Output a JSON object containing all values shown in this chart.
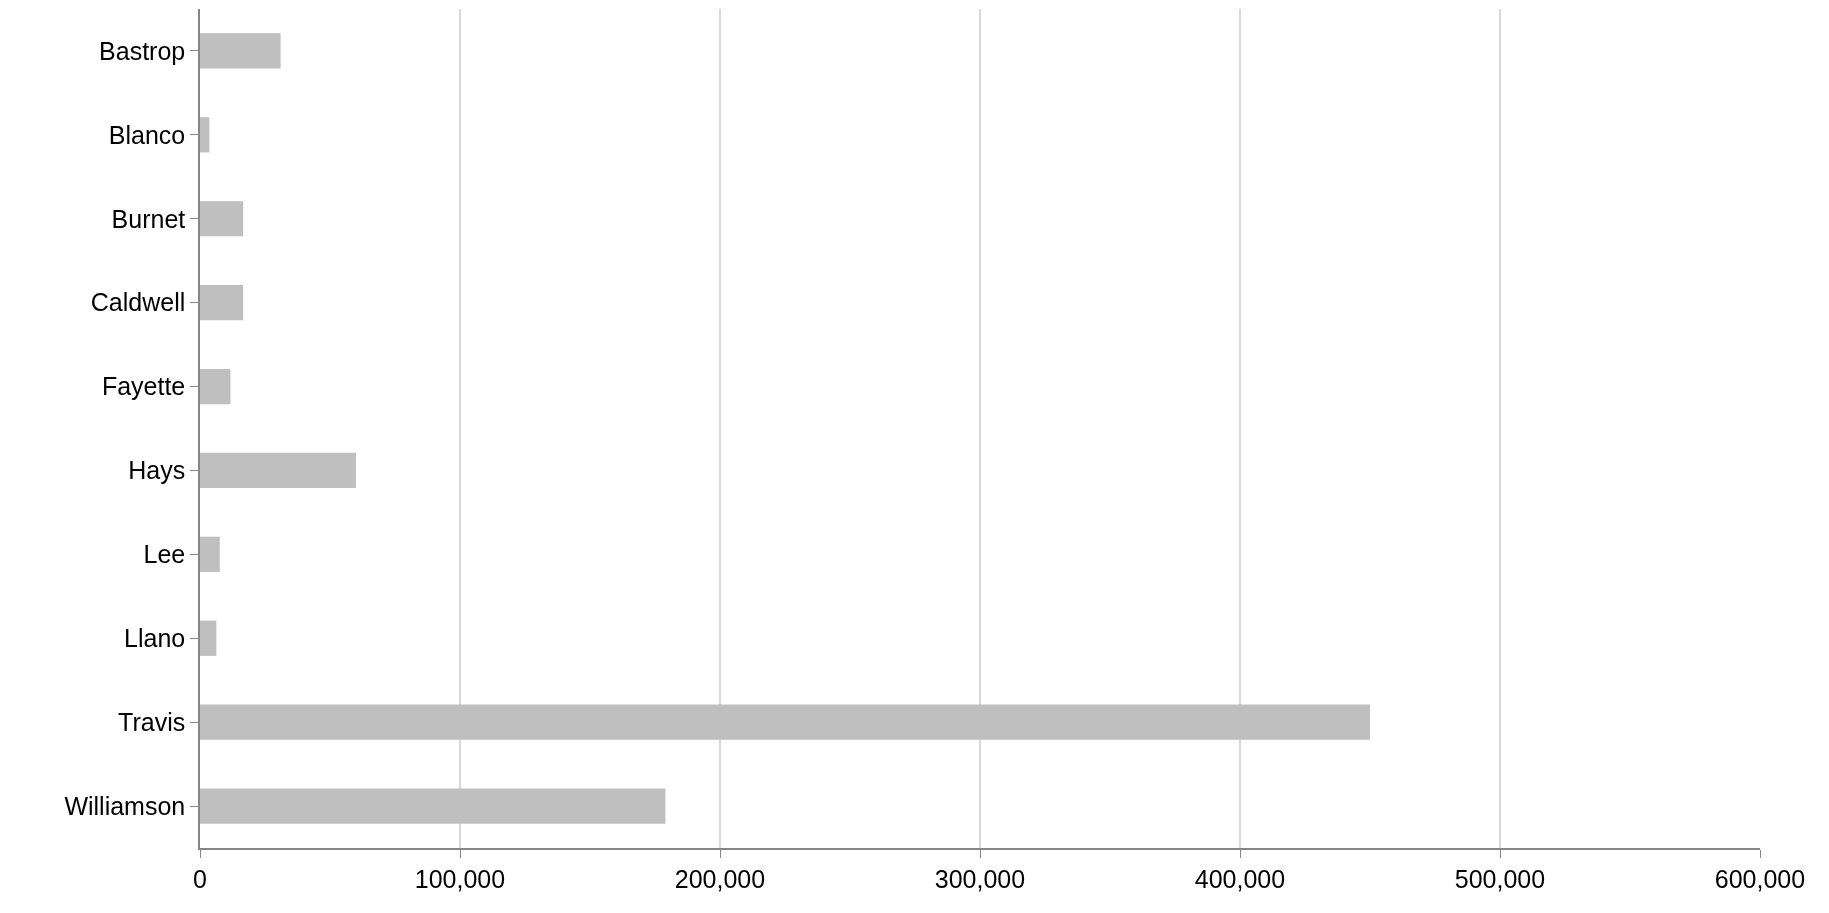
{
  "chart_data": {
    "type": "bar",
    "orientation": "horizontal",
    "categories": [
      "Bastrop",
      "Blanco",
      "Burnet",
      "Caldwell",
      "Fayette",
      "Hays",
      "Lee",
      "Llano",
      "Travis",
      "Williamson"
    ],
    "values": [
      31000,
      3600,
      16600,
      16600,
      11700,
      60000,
      7600,
      6300,
      450000,
      179000
    ],
    "color": "#bfbfbf",
    "xlim": [
      0,
      600000
    ],
    "xticks": [
      {
        "value": 0,
        "label": "0"
      },
      {
        "value": 100000,
        "label": "100,000"
      },
      {
        "value": 200000,
        "label": "200,000"
      },
      {
        "value": 300000,
        "label": "300,000"
      },
      {
        "value": 400000,
        "label": "400,000"
      },
      {
        "value": 500000,
        "label": "500,000"
      },
      {
        "value": 600000,
        "label": "600,000"
      }
    ],
    "grid": "x"
  }
}
